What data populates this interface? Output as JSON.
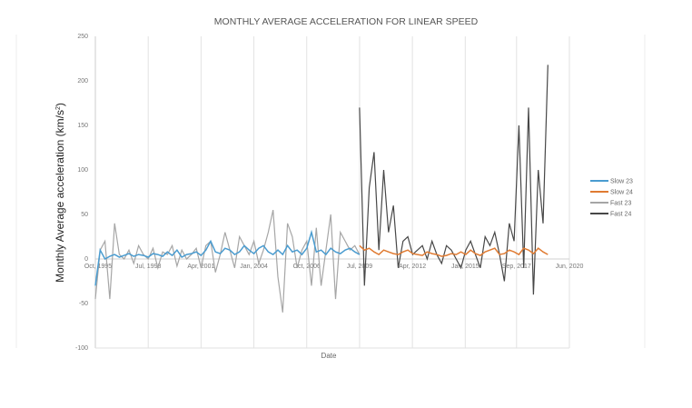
{
  "chart_data": {
    "type": "line",
    "title": "MONTHLY AVERAGE ACCELERATION FOR LINEAR SPEED",
    "xlabel": "Date",
    "ylabel": "Monthly Average acceleration (km/s²)",
    "ylabel_main": "Monthly Average acceleration (km/s",
    "ylabel_sup": "2",
    "ylabel_end": ")",
    "ylim": [
      -100,
      250
    ],
    "yticks": [
      -100,
      -50,
      0,
      50,
      100,
      150,
      200,
      250
    ],
    "xlim": [
      1995.75,
      2020.42
    ],
    "xticks": [
      {
        "label": "Oct, 1995",
        "value": 1995.75
      },
      {
        "label": "Jul, 1998",
        "value": 1998.5
      },
      {
        "label": "Apr, 2001",
        "value": 2001.25
      },
      {
        "label": "Jan, 2004",
        "value": 2004.0
      },
      {
        "label": "Oct, 2006",
        "value": 2006.75
      },
      {
        "label": "Jul, 2009",
        "value": 2009.5
      },
      {
        "label": "Apr, 2012",
        "value": 2012.25
      },
      {
        "label": "Jan, 2015",
        "value": 2015.0
      },
      {
        "label": "Sep, 2017",
        "value": 2017.67
      },
      {
        "label": "Jun, 2020",
        "value": 2020.42
      }
    ],
    "grid": "vertical",
    "legend": "right",
    "series": [
      {
        "name": "Slow 23",
        "color": "#4a9cd0",
        "x_start": 1995.75,
        "x_end": 2009.5,
        "values": [
          -30,
          10,
          0,
          3,
          5,
          2,
          4,
          6,
          3,
          5,
          4,
          2,
          6,
          5,
          3,
          8,
          4,
          10,
          2,
          5,
          6,
          8,
          4,
          10,
          20,
          8,
          6,
          12,
          10,
          5,
          8,
          15,
          10,
          6,
          12,
          15,
          8,
          5,
          10,
          5,
          15,
          8,
          10,
          5,
          12,
          30,
          8,
          10,
          5,
          12,
          8,
          6,
          10,
          12,
          8,
          5
        ]
      },
      {
        "name": "Slow 24",
        "color": "#e07b32",
        "x_start": 2009.5,
        "x_end": 2019.3,
        "values": [
          15,
          10,
          12,
          8,
          5,
          10,
          8,
          6,
          5,
          8,
          10,
          6,
          5,
          4,
          8,
          6,
          5,
          3,
          4,
          6,
          5,
          8,
          5,
          10,
          6,
          4,
          8,
          10,
          12,
          5,
          6,
          10,
          8,
          5,
          12,
          10,
          6,
          12,
          8,
          5
        ]
      },
      {
        "name": "Fast 23",
        "color": "#a6a6a6",
        "x_start": 1995.75,
        "x_end": 2009.5,
        "values": [
          -45,
          10,
          20,
          -45,
          40,
          5,
          0,
          10,
          -5,
          15,
          5,
          0,
          12,
          -10,
          8,
          5,
          15,
          -8,
          10,
          0,
          5,
          12,
          -10,
          15,
          20,
          -15,
          5,
          30,
          10,
          -10,
          25,
          15,
          5,
          20,
          -5,
          10,
          30,
          55,
          -20,
          -60,
          40,
          25,
          -10,
          10,
          20,
          -30,
          35,
          -30,
          10,
          50,
          -45,
          30,
          20,
          10,
          15,
          5
        ]
      },
      {
        "name": "Fast 24",
        "color": "#474747",
        "x_start": 2009.5,
        "x_end": 2019.3,
        "values": [
          170,
          -30,
          80,
          120,
          10,
          100,
          30,
          60,
          -10,
          20,
          25,
          5,
          10,
          15,
          0,
          20,
          5,
          -5,
          15,
          10,
          0,
          -10,
          10,
          20,
          5,
          -10,
          25,
          15,
          30,
          5,
          -25,
          40,
          20,
          150,
          -10,
          170,
          -40,
          100,
          40,
          218
        ]
      }
    ]
  }
}
